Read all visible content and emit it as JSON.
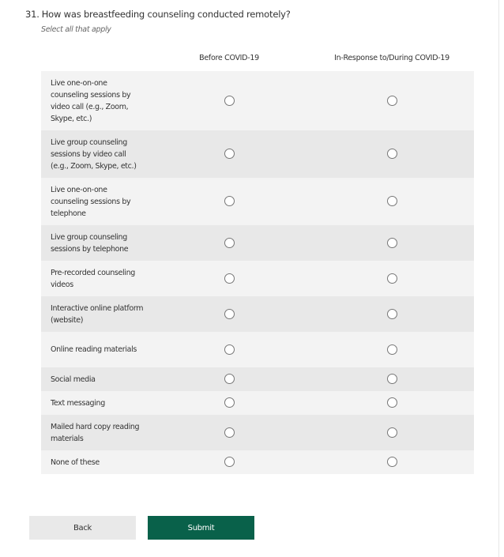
{
  "question": {
    "number": "31.",
    "text": "How was breastfeeding counseling conducted remotely?",
    "instruction": "Select all that apply"
  },
  "columns": [
    "Before COVID-19",
    "In-Response to/During COVID-19"
  ],
  "rows": [
    {
      "label": "Live one-on-one counseling sessions by video call (e.g., Zoom, Skype, etc.)",
      "selected": [
        false,
        false
      ]
    },
    {
      "label": "Live group counseling sessions by video call (e.g., Zoom, Skype, etc.)",
      "selected": [
        false,
        false
      ]
    },
    {
      "label": "Live one-on-one counseling sessions by telephone",
      "selected": [
        false,
        false
      ]
    },
    {
      "label": "Live group counseling sessions by telephone",
      "selected": [
        false,
        false
      ]
    },
    {
      "label": "Pre-recorded counseling videos",
      "selected": [
        false,
        false
      ]
    },
    {
      "label": "Interactive online platform (website)",
      "selected": [
        false,
        false
      ]
    },
    {
      "label": "Online reading materials",
      "selected": [
        false,
        false
      ]
    },
    {
      "label": "Social media",
      "selected": [
        false,
        false
      ]
    },
    {
      "label": "Text messaging",
      "selected": [
        false,
        false
      ]
    },
    {
      "label": "Mailed hard copy reading materials",
      "selected": [
        false,
        false
      ]
    },
    {
      "label": "None of these",
      "selected": [
        false,
        false
      ]
    }
  ],
  "buttons": {
    "back": "Back",
    "submit": "Submit"
  },
  "colors": {
    "submit": "#09614a",
    "row_light": "#f3f3f3",
    "row_dark": "#e8e8e8"
  }
}
